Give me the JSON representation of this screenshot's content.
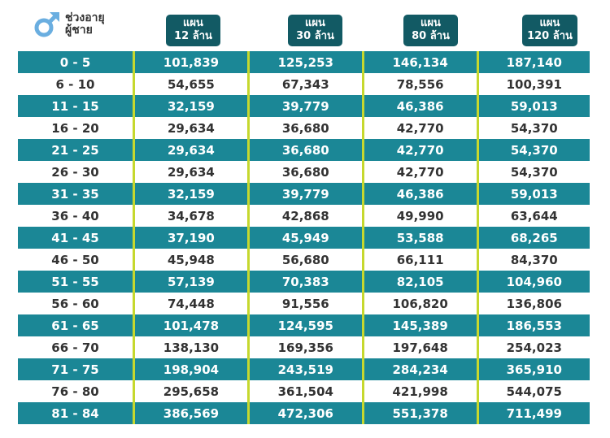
{
  "header": {
    "title_line1": "ช่วงอายุ",
    "title_line2": "ผู้ชาย",
    "icon": "male-symbol-icon",
    "icon_color": "#6aaee0"
  },
  "plans": [
    {
      "line1": "แผน",
      "line2": "12 ล้าน"
    },
    {
      "line1": "แผน",
      "line2": "30 ล้าน"
    },
    {
      "line1": "แผน",
      "line2": "80 ล้าน"
    },
    {
      "line1": "แผน",
      "line2": "120 ล้าน"
    }
  ],
  "colors": {
    "teal_row": "#1b8796",
    "header_box": "#125a64",
    "divider": "#c6d82e"
  },
  "rows": [
    [
      "0 - 5",
      "101,839",
      "125,253",
      "146,134",
      "187,140"
    ],
    [
      "6 - 10",
      "54,655",
      "67,343",
      "78,556",
      "100,391"
    ],
    [
      "11 - 15",
      "32,159",
      "39,779",
      "46,386",
      "59,013"
    ],
    [
      "16 - 20",
      "29,634",
      "36,680",
      "42,770",
      "54,370"
    ],
    [
      "21 - 25",
      "29,634",
      "36,680",
      "42,770",
      "54,370"
    ],
    [
      "26 - 30",
      "29,634",
      "36,680",
      "42,770",
      "54,370"
    ],
    [
      "31 - 35",
      "32,159",
      "39,779",
      "46,386",
      "59,013"
    ],
    [
      "36 - 40",
      "34,678",
      "42,868",
      "49,990",
      "63,644"
    ],
    [
      "41 - 45",
      "37,190",
      "45,949",
      "53,588",
      "68,265"
    ],
    [
      "46 - 50",
      "45,948",
      "56,680",
      "66,111",
      "84,370"
    ],
    [
      "51 - 55",
      "57,139",
      "70,383",
      "82,105",
      "104,960"
    ],
    [
      "56 - 60",
      "74,448",
      "91,556",
      "106,820",
      "136,806"
    ],
    [
      "61 - 65",
      "101,478",
      "124,595",
      "145,389",
      "186,553"
    ],
    [
      "66 - 70",
      "138,130",
      "169,356",
      "197,648",
      "254,023"
    ],
    [
      "71 - 75",
      "198,904",
      "243,519",
      "284,234",
      "365,910"
    ],
    [
      "76 - 80",
      "295,658",
      "361,504",
      "421,998",
      "544,075"
    ],
    [
      "81 - 84",
      "386,569",
      "472,306",
      "551,378",
      "711,499"
    ]
  ]
}
